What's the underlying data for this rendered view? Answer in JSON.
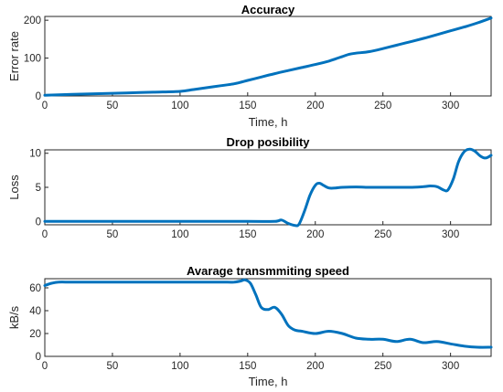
{
  "chart_data": [
    {
      "type": "line",
      "title": "Accuracy",
      "xlabel": "Time, h",
      "ylabel": "Error rate",
      "xlim": [
        0,
        330
      ],
      "ylim": [
        0,
        210
      ],
      "xticks": [
        0,
        50,
        100,
        150,
        200,
        250,
        300
      ],
      "yticks": [
        0,
        100,
        200
      ],
      "grid": false,
      "color": "#0072BD",
      "series": [
        {
          "x": [
            0,
            20,
            40,
            60,
            80,
            100,
            110,
            120,
            130,
            140,
            150,
            160,
            170,
            180,
            190,
            200,
            210,
            215,
            220,
            225,
            230,
            240,
            250,
            260,
            270,
            280,
            290,
            300,
            310,
            320,
            330
          ],
          "y": [
            2,
            4,
            6,
            8,
            10,
            12,
            17,
            22,
            27,
            32,
            41,
            50,
            59,
            67,
            75,
            83,
            92,
            98,
            104,
            110,
            113,
            117,
            125,
            134,
            143,
            152,
            162,
            172,
            182,
            193,
            206
          ]
        }
      ]
    },
    {
      "type": "line",
      "title": "Drop posibility",
      "xlabel": "",
      "ylabel": "Loss",
      "xlim": [
        0,
        330
      ],
      "ylim": [
        -0.5,
        10.5
      ],
      "xticks": [
        0,
        50,
        100,
        150,
        200,
        250,
        300
      ],
      "yticks": [
        0,
        5,
        10
      ],
      "grid": false,
      "color": "#0072BD",
      "series": [
        {
          "x": [
            0,
            50,
            100,
            150,
            170,
            175,
            180,
            185,
            188,
            192,
            196,
            200,
            203,
            206,
            210,
            215,
            220,
            230,
            240,
            250,
            260,
            270,
            280,
            285,
            290,
            295,
            298,
            302,
            306,
            310,
            314,
            318,
            322,
            326,
            330
          ],
          "y": [
            0,
            0,
            0,
            0,
            0,
            0.2,
            -0.3,
            -0.6,
            -0.4,
            1.5,
            3.8,
            5.3,
            5.6,
            5.3,
            4.9,
            4.9,
            5.0,
            5.05,
            5.0,
            5.0,
            5.0,
            5.0,
            5.1,
            5.2,
            5.1,
            4.6,
            4.6,
            6.2,
            8.8,
            10.2,
            10.6,
            10.3,
            9.6,
            9.3,
            9.7
          ]
        }
      ]
    },
    {
      "type": "line",
      "title": "Avarage transmmiting speed",
      "xlabel": "Time, h",
      "ylabel": "kB/s",
      "xlim": [
        0,
        330
      ],
      "ylim": [
        0,
        68
      ],
      "xticks": [
        0,
        50,
        100,
        150,
        200,
        250,
        300
      ],
      "yticks": [
        0,
        20,
        40,
        60
      ],
      "grid": false,
      "color": "#0072BD",
      "series": [
        {
          "x": [
            0,
            5,
            10,
            20,
            40,
            60,
            80,
            100,
            120,
            135,
            140,
            145,
            148,
            152,
            156,
            160,
            165,
            170,
            175,
            180,
            185,
            190,
            200,
            210,
            220,
            230,
            240,
            250,
            260,
            270,
            280,
            290,
            300,
            310,
            320,
            330
          ],
          "y": [
            62,
            64,
            65,
            65,
            65,
            65,
            65,
            65,
            65,
            65,
            65,
            66,
            67,
            64,
            54,
            43,
            41,
            43,
            37,
            27,
            23,
            22,
            20,
            22,
            20,
            16,
            15,
            15,
            13,
            15,
            12,
            13,
            11,
            9,
            8,
            8
          ]
        }
      ]
    }
  ]
}
